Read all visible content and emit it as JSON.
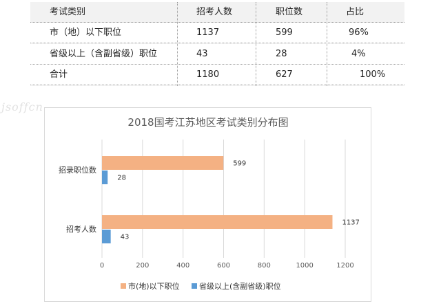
{
  "table": {
    "headers": [
      "考试类别",
      "招考人数",
      "职位数",
      "占比"
    ],
    "rows": [
      [
        "市（地）以下职位",
        "1137",
        "599",
        "96%"
      ],
      [
        "省级以上（含副省级）职位",
        "43",
        "28",
        "4%"
      ],
      [
        "合计",
        "1180",
        "627",
        "100%"
      ]
    ]
  },
  "watermark": "jsoffcn",
  "chart_data": {
    "type": "bar",
    "orientation": "horizontal",
    "title": "2018国考江苏地区考试类别分布图",
    "categories": [
      "招录职位数",
      "招考人数"
    ],
    "series": [
      {
        "name": "市(地)以下职位",
        "values": [
          599,
          1137
        ],
        "color": "#f4b183"
      },
      {
        "name": "省级以上(含副省级)职位",
        "values": [
          28,
          43
        ],
        "color": "#5b9bd5"
      }
    ],
    "xlim": [
      0,
      1200
    ],
    "xticks": [
      0,
      200,
      400,
      600,
      800,
      1000,
      1200
    ],
    "grid": true,
    "legend": "bottom"
  }
}
